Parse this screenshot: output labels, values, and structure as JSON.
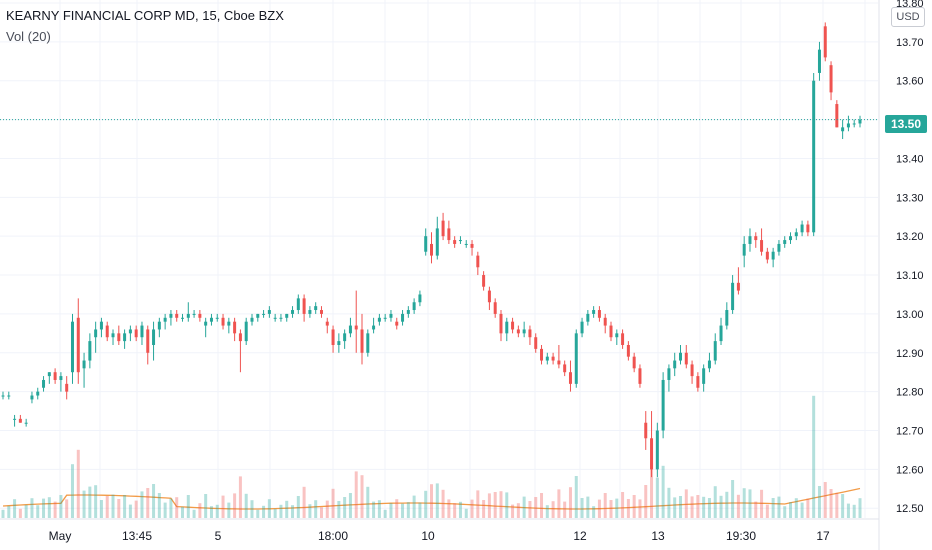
{
  "header": {
    "symbol_title": "KEARNY FINANCIAL CORP MD, 15, Cboe BZX",
    "volume_indicator": "Vol (20)"
  },
  "price_scale": {
    "currency": "USD",
    "last_price_label": "13.50"
  },
  "colors": {
    "up": "#26a69a",
    "down": "#ef5350",
    "volume_ma": "#f29b47",
    "last_price_line": "#26a69a",
    "grid": "#f0f3fa"
  },
  "chart_data": {
    "type": "candlestick",
    "title": "KEARNY FINANCIAL CORP MD, 15, Cboe BZX",
    "ylabel": "USD",
    "ylim": [
      12.48,
      13.8
    ],
    "yticks": [
      13.8,
      13.7,
      13.6,
      13.5,
      13.4,
      13.3,
      13.2,
      13.1,
      13.0,
      12.9,
      12.8,
      12.7,
      12.6,
      12.5
    ],
    "ytick_labels": [
      "13.80",
      "13.70",
      "13.60",
      "13.50",
      "13.40",
      "13.30",
      "13.20",
      "13.10",
      "13.00",
      "12.90",
      "12.80",
      "12.70",
      "12.60",
      "12.50"
    ],
    "xtick_labels": [
      "May",
      "13:45",
      "5",
      "18:00",
      "10",
      "12",
      "13",
      "19:30",
      "17"
    ],
    "last_price": 13.5,
    "grid": true,
    "indicators": [
      "Vol (20)"
    ],
    "ohlc": [
      [
        12.79,
        12.8,
        12.78,
        12.79
      ],
      [
        12.79,
        12.8,
        12.78,
        12.79
      ],
      [
        12.73,
        12.74,
        12.71,
        12.73
      ],
      [
        12.73,
        12.74,
        12.72,
        12.72
      ],
      [
        12.72,
        12.73,
        12.71,
        12.72
      ],
      [
        12.78,
        12.8,
        12.77,
        12.79
      ],
      [
        12.79,
        12.81,
        12.78,
        12.8
      ],
      [
        12.81,
        12.84,
        12.8,
        12.83
      ],
      [
        12.84,
        12.85,
        12.82,
        12.85
      ],
      [
        12.85,
        12.86,
        12.82,
        12.83
      ],
      [
        12.83,
        12.85,
        12.8,
        12.84
      ],
      [
        12.82,
        12.84,
        12.78,
        12.8
      ],
      [
        12.85,
        13.0,
        12.82,
        12.98
      ],
      [
        12.99,
        13.04,
        12.82,
        12.85
      ],
      [
        12.86,
        12.9,
        12.81,
        12.88
      ],
      [
        12.88,
        12.95,
        12.86,
        12.93
      ],
      [
        12.94,
        12.98,
        12.9,
        12.96
      ],
      [
        12.96,
        12.99,
        12.94,
        12.98
      ],
      [
        12.97,
        12.98,
        12.93,
        12.94
      ],
      [
        12.94,
        12.96,
        12.92,
        12.95
      ],
      [
        12.95,
        12.97,
        12.92,
        12.93
      ],
      [
        12.93,
        12.96,
        12.91,
        12.95
      ],
      [
        12.95,
        12.97,
        12.93,
        12.96
      ],
      [
        12.96,
        12.97,
        12.93,
        12.94
      ],
      [
        12.94,
        12.98,
        12.92,
        12.97
      ],
      [
        12.96,
        12.97,
        12.87,
        12.9
      ],
      [
        12.92,
        12.98,
        12.88,
        12.96
      ],
      [
        12.96,
        12.99,
        12.94,
        12.98
      ],
      [
        12.98,
        13.0,
        12.96,
        12.99
      ],
      [
        12.99,
        13.01,
        12.97,
        13.0
      ],
      [
        13.0,
        13.01,
        12.98,
        12.99
      ],
      [
        12.99,
        13.0,
        12.98,
        12.99
      ],
      [
        12.99,
        13.03,
        12.98,
        13.0
      ],
      [
        13.0,
        13.01,
        12.99,
        13.0
      ],
      [
        13.0,
        13.01,
        12.98,
        12.99
      ],
      [
        12.97,
        12.99,
        12.94,
        12.98
      ],
      [
        12.98,
        13.0,
        12.97,
        12.99
      ],
      [
        12.99,
        13.0,
        12.98,
        12.99
      ],
      [
        12.99,
        13.0,
        12.96,
        12.97
      ],
      [
        12.97,
        12.99,
        12.95,
        12.98
      ],
      [
        12.98,
        12.99,
        12.93,
        12.95
      ],
      [
        12.95,
        12.96,
        12.85,
        12.93
      ],
      [
        12.93,
        12.99,
        12.92,
        12.98
      ],
      [
        12.98,
        13.0,
        12.97,
        12.99
      ],
      [
        12.99,
        13.0,
        12.98,
        13.0
      ],
      [
        13.0,
        13.01,
        12.99,
        13.0
      ],
      [
        13.0,
        13.02,
        12.99,
        13.01
      ],
      [
        12.99,
        13.0,
        12.98,
        12.99
      ],
      [
        12.99,
        13.0,
        12.98,
        12.99
      ],
      [
        12.99,
        13.0,
        12.98,
        13.0
      ],
      [
        13.0,
        13.02,
        12.99,
        13.01
      ],
      [
        13.01,
        13.05,
        13.0,
        13.04
      ],
      [
        13.04,
        13.05,
        12.98,
        13.0
      ],
      [
        13.0,
        13.02,
        12.99,
        13.01
      ],
      [
        13.01,
        13.03,
        13.0,
        13.02
      ],
      [
        13.01,
        13.02,
        12.99,
        13.0
      ],
      [
        12.98,
        12.99,
        12.95,
        12.97
      ],
      [
        12.96,
        12.97,
        12.9,
        12.92
      ],
      [
        12.92,
        12.95,
        12.9,
        12.93
      ],
      [
        12.93,
        12.96,
        12.91,
        12.95
      ],
      [
        12.95,
        12.99,
        12.94,
        12.97
      ],
      [
        12.97,
        13.06,
        12.9,
        12.96
      ],
      [
        12.96,
        13.0,
        12.87,
        12.9
      ],
      [
        12.9,
        12.96,
        12.89,
        12.95
      ],
      [
        12.96,
        12.99,
        12.95,
        12.97
      ],
      [
        12.98,
        13.0,
        12.97,
        12.99
      ],
      [
        12.99,
        13.0,
        12.98,
        12.99
      ],
      [
        12.99,
        13.01,
        12.98,
        13.0
      ],
      [
        12.98,
        12.99,
        12.96,
        12.97
      ],
      [
        12.98,
        13.01,
        12.97,
        13.0
      ],
      [
        13.0,
        13.02,
        12.99,
        13.01
      ],
      [
        13.01,
        13.04,
        13.0,
        13.03
      ],
      [
        13.03,
        13.06,
        13.02,
        13.05
      ],
      [
        13.16,
        13.22,
        13.15,
        13.2
      ],
      [
        13.18,
        13.21,
        13.13,
        13.15
      ],
      [
        13.15,
        13.25,
        13.14,
        13.22
      ],
      [
        13.24,
        13.26,
        13.19,
        13.2
      ],
      [
        13.22,
        13.24,
        13.18,
        13.19
      ],
      [
        13.19,
        13.2,
        13.17,
        13.18
      ],
      [
        13.19,
        13.2,
        13.18,
        13.19
      ],
      [
        13.18,
        13.19,
        13.17,
        13.18
      ],
      [
        13.18,
        13.19,
        13.15,
        13.17
      ],
      [
        13.15,
        13.16,
        13.1,
        13.12
      ],
      [
        13.1,
        13.11,
        13.06,
        13.07
      ],
      [
        13.06,
        13.07,
        13.01,
        13.03
      ],
      [
        13.03,
        13.04,
        12.99,
        13.0
      ],
      [
        13.0,
        13.01,
        12.93,
        12.95
      ],
      [
        12.95,
        12.99,
        12.93,
        12.98
      ],
      [
        12.98,
        12.99,
        12.95,
        12.96
      ],
      [
        12.96,
        12.97,
        12.94,
        12.95
      ],
      [
        12.95,
        12.98,
        12.94,
        12.96
      ],
      [
        12.96,
        12.97,
        12.92,
        12.94
      ],
      [
        12.94,
        12.95,
        12.9,
        12.91
      ],
      [
        12.91,
        12.92,
        12.87,
        12.88
      ],
      [
        12.88,
        12.9,
        12.87,
        12.89
      ],
      [
        12.89,
        12.9,
        12.87,
        12.88
      ],
      [
        12.88,
        12.92,
        12.86,
        12.87
      ],
      [
        12.87,
        12.88,
        12.84,
        12.85
      ],
      [
        12.85,
        12.88,
        12.8,
        12.82
      ],
      [
        12.82,
        12.96,
        12.81,
        12.95
      ],
      [
        12.95,
        12.99,
        12.94,
        12.98
      ],
      [
        12.98,
        13.01,
        12.97,
        13.0
      ],
      [
        13.0,
        13.02,
        12.99,
        13.01
      ],
      [
        13.01,
        13.02,
        12.98,
        12.99
      ],
      [
        12.99,
        13.0,
        12.95,
        12.97
      ],
      [
        12.97,
        12.98,
        12.93,
        12.94
      ],
      [
        12.94,
        12.96,
        12.92,
        12.95
      ],
      [
        12.95,
        12.96,
        12.91,
        12.92
      ],
      [
        12.92,
        12.93,
        12.88,
        12.89
      ],
      [
        12.89,
        12.9,
        12.85,
        12.86
      ],
      [
        12.86,
        12.87,
        12.81,
        12.82
      ],
      [
        12.72,
        12.75,
        12.65,
        12.68
      ],
      [
        12.68,
        12.75,
        12.58,
        12.6
      ],
      [
        12.6,
        12.72,
        12.58,
        12.7
      ],
      [
        12.7,
        12.85,
        12.68,
        12.83
      ],
      [
        12.83,
        12.87,
        12.8,
        12.86
      ],
      [
        12.86,
        12.9,
        12.84,
        12.88
      ],
      [
        12.88,
        12.92,
        12.87,
        12.9
      ],
      [
        12.9,
        12.92,
        12.86,
        12.87
      ],
      [
        12.87,
        12.88,
        12.82,
        12.84
      ],
      [
        12.84,
        12.85,
        12.8,
        12.81
      ],
      [
        12.82,
        12.87,
        12.8,
        12.86
      ],
      [
        12.86,
        12.9,
        12.85,
        12.88
      ],
      [
        12.88,
        12.95,
        12.87,
        12.93
      ],
      [
        12.93,
        12.99,
        12.92,
        12.97
      ],
      [
        12.97,
        13.03,
        12.96,
        13.01
      ],
      [
        13.01,
        13.1,
        13.0,
        13.08
      ],
      [
        13.08,
        13.12,
        13.05,
        13.06
      ],
      [
        13.15,
        13.2,
        13.12,
        13.18
      ],
      [
        13.18,
        13.22,
        13.16,
        13.2
      ],
      [
        13.2,
        13.21,
        13.17,
        13.19
      ],
      [
        13.19,
        13.22,
        13.15,
        13.16
      ],
      [
        13.16,
        13.17,
        13.13,
        13.14
      ],
      [
        13.14,
        13.17,
        13.12,
        13.16
      ],
      [
        13.16,
        13.19,
        13.15,
        13.18
      ],
      [
        13.18,
        13.2,
        13.17,
        13.19
      ],
      [
        13.19,
        13.21,
        13.18,
        13.2
      ],
      [
        13.2,
        13.22,
        13.19,
        13.21
      ],
      [
        13.21,
        13.24,
        13.2,
        13.23
      ],
      [
        13.23,
        13.24,
        13.2,
        13.21
      ],
      [
        13.21,
        13.62,
        13.2,
        13.6
      ],
      [
        13.62,
        13.7,
        13.6,
        13.68
      ],
      [
        13.74,
        13.75,
        13.65,
        13.66
      ],
      [
        13.64,
        13.65,
        13.55,
        13.57
      ],
      [
        13.54,
        13.55,
        13.48,
        13.48
      ],
      [
        13.47,
        13.5,
        13.45,
        13.48
      ],
      [
        13.48,
        13.51,
        13.47,
        13.49
      ],
      [
        13.49,
        13.5,
        13.48,
        13.49
      ],
      [
        13.49,
        13.51,
        13.48,
        13.5
      ]
    ]
  }
}
